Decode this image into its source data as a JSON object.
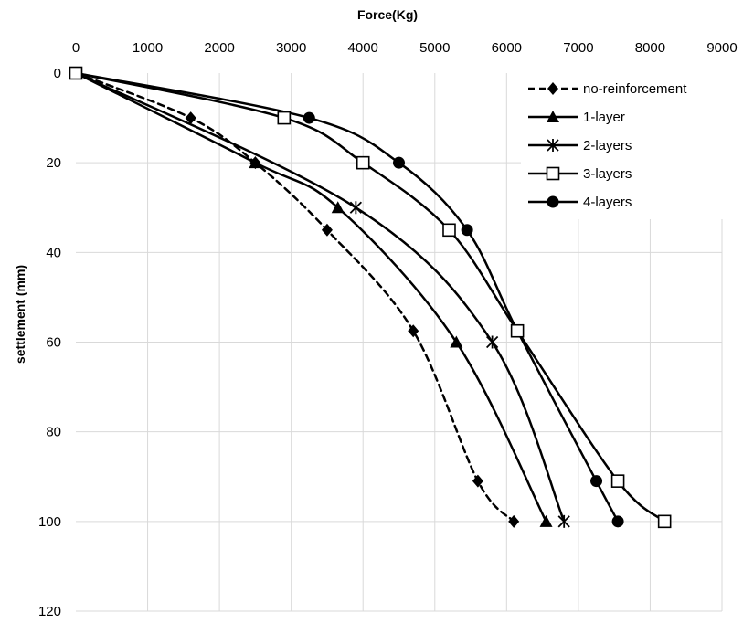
{
  "chart_data": {
    "type": "line",
    "xlabel": "Force(Kg)",
    "ylabel": "settlement (mm)",
    "xlim": [
      0,
      9000
    ],
    "ylim": [
      0,
      120
    ],
    "x_ticks": [
      0,
      1000,
      2000,
      3000,
      4000,
      5000,
      6000,
      7000,
      8000,
      9000
    ],
    "y_ticks": [
      0,
      20,
      40,
      60,
      80,
      100,
      120
    ],
    "x_axis_position": "top",
    "y_axis_reversed": true,
    "grid": true,
    "legend_position": "top-right",
    "series": [
      {
        "name": "no-reinforcement",
        "marker": "diamond",
        "line_style": "dashed",
        "color": "#000000",
        "points": [
          [
            0,
            0
          ],
          [
            1600,
            10
          ],
          [
            2500,
            20
          ],
          [
            3500,
            35
          ],
          [
            4700,
            57.5
          ],
          [
            5600,
            91
          ],
          [
            6100,
            100
          ]
        ]
      },
      {
        "name": "1-layer",
        "marker": "triangle",
        "line_style": "solid",
        "color": "#000000",
        "points": [
          [
            0,
            0
          ],
          [
            2500,
            20
          ],
          [
            3650,
            30
          ],
          [
            5300,
            60
          ],
          [
            6550,
            100
          ]
        ]
      },
      {
        "name": "2-layers",
        "marker": "star",
        "line_style": "solid",
        "color": "#000000",
        "points": [
          [
            0,
            0
          ],
          [
            3900,
            30
          ],
          [
            5800,
            60
          ],
          [
            6800,
            100
          ]
        ]
      },
      {
        "name": "3-layers",
        "marker": "open-square",
        "line_style": "solid",
        "color": "#000000",
        "points": [
          [
            0,
            0
          ],
          [
            2900,
            10
          ],
          [
            4000,
            20
          ],
          [
            5200,
            35
          ],
          [
            6150,
            57.5
          ],
          [
            7550,
            91
          ],
          [
            8200,
            100
          ]
        ]
      },
      {
        "name": "4-layers",
        "marker": "circle",
        "line_style": "solid",
        "color": "#000000",
        "points": [
          [
            0,
            0
          ],
          [
            3250,
            10
          ],
          [
            4500,
            20
          ],
          [
            5450,
            35
          ],
          [
            6150,
            57.5
          ],
          [
            7250,
            91
          ],
          [
            7550,
            100
          ]
        ]
      }
    ]
  }
}
